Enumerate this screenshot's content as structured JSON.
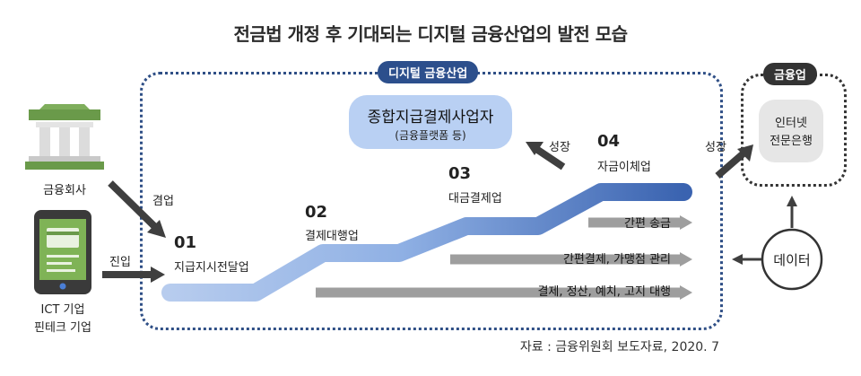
{
  "title": "전금법 개정 후 기대되는 디지털 금융산업의 발전 모습",
  "digital_industry": {
    "label": "디지털 금융산업",
    "top_box": {
      "title": "종합지급결제사업자",
      "subtitle": "(금융플랫폼 등)"
    },
    "growth_label": "성장",
    "steps": [
      {
        "num": "01",
        "label": "지급지시전달업"
      },
      {
        "num": "02",
        "label": "결제대행업"
      },
      {
        "num": "03",
        "label": "대금결제업"
      },
      {
        "num": "04",
        "label": "자금이체업"
      }
    ],
    "services": [
      {
        "label": "간편 송금"
      },
      {
        "label": "간편결제, 가맹점 관리"
      },
      {
        "label": "결제, 정산, 예치, 고지 대행"
      }
    ]
  },
  "financial": {
    "label": "금융업",
    "bank_line1": "인터넷",
    "bank_line2": "전문은행",
    "growth_label": "성장"
  },
  "entrants": {
    "financial_company": "금융회사",
    "concurrent_label": "겸업",
    "ict_line1": "ICT 기업",
    "ict_line2": "핀테크 기업",
    "entry_label": "진입"
  },
  "data_node": {
    "label": "데이터"
  },
  "source": "자료 : 금융위원회 보도자료, 2020. 7",
  "colors": {
    "accent_blue": "#2c4f8c",
    "step_blue_light": "#a9c3ea",
    "step_blue_dark": "#3a63b0",
    "gray_bar": "#9a9a9a",
    "dark_arrow": "#3f3f3f",
    "bank_green": "#6a9a4a"
  },
  "icons": {
    "bank": "bank-icon",
    "phone": "phone-icon"
  }
}
